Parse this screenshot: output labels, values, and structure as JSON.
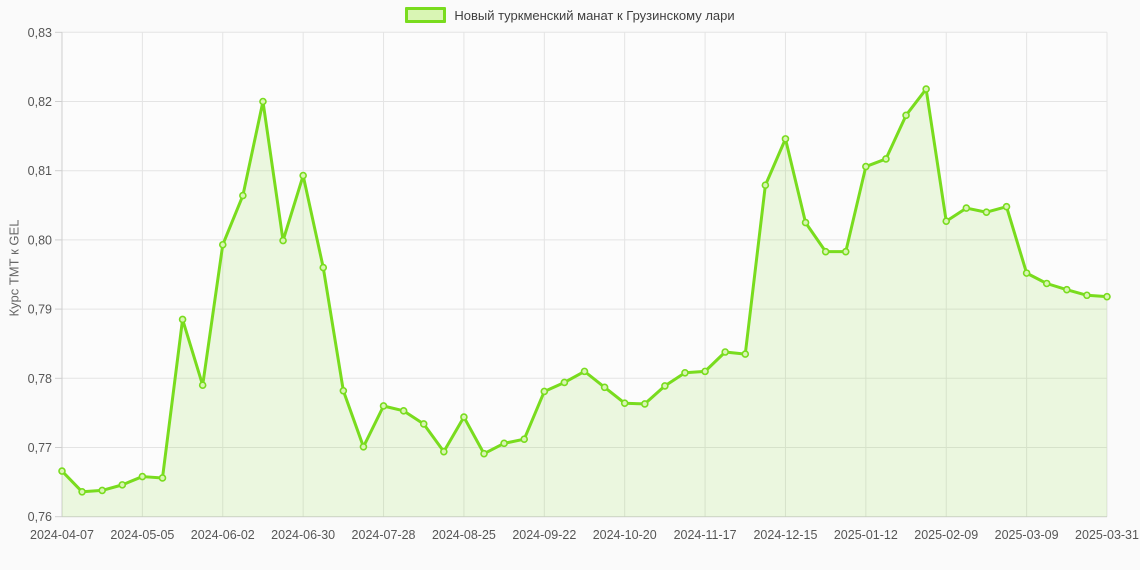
{
  "legend": {
    "label": "Новый туркменский манат к Грузинскому лари"
  },
  "colors": {
    "line": "#79dc1e",
    "area_fill": "rgba(121,220,30,0.13)",
    "marker_fill": "#d9f5b4",
    "plot_bg": "#fcfcfc",
    "page_bg": "#fafafa",
    "grid": "#e4e4e4",
    "axis": "#cfcfcf",
    "tick_text": "#565656"
  },
  "chart_data": {
    "type": "area",
    "title": "",
    "xlabel": "",
    "ylabel": "Курс ТМТ к GEL",
    "ylim": [
      0.76,
      0.83
    ],
    "grid": true,
    "legend_position": "top-center",
    "series": [
      {
        "name": "Новый туркменский манат к Грузинскому лари",
        "values": [
          0.7666,
          0.7636,
          0.7638,
          0.7646,
          0.7658,
          0.7656,
          0.7885,
          0.779,
          0.7993,
          0.8064,
          0.82,
          0.7999,
          0.8093,
          0.796,
          0.7782,
          0.7701,
          0.776,
          0.7753,
          0.7734,
          0.7694,
          0.7744,
          0.7691,
          0.7706,
          0.7712,
          0.7781,
          0.7794,
          0.781,
          0.7787,
          0.7764,
          0.7763,
          0.7789,
          0.7808,
          0.781,
          0.7838,
          0.7835,
          0.8079,
          0.8146,
          0.8025,
          0.7983,
          0.7983,
          0.8106,
          0.8117,
          0.818,
          0.8218,
          0.8027,
          0.8046,
          0.804,
          0.8048,
          0.7952,
          0.7937,
          0.7928,
          0.792,
          0.7918
        ]
      }
    ],
    "x": [
      "2024-04-07",
      "2024-04-14",
      "2024-04-21",
      "2024-04-28",
      "2024-05-05",
      "2024-05-12",
      "2024-05-19",
      "2024-05-26",
      "2024-06-02",
      "2024-06-09",
      "2024-06-16",
      "2024-06-23",
      "2024-06-30",
      "2024-07-07",
      "2024-07-14",
      "2024-07-21",
      "2024-07-28",
      "2024-08-04",
      "2024-08-11",
      "2024-08-18",
      "2024-08-25",
      "2024-09-01",
      "2024-09-08",
      "2024-09-15",
      "2024-09-22",
      "2024-09-29",
      "2024-10-06",
      "2024-10-13",
      "2024-10-20",
      "2024-10-27",
      "2024-11-03",
      "2024-11-10",
      "2024-11-17",
      "2024-11-24",
      "2024-12-01",
      "2024-12-08",
      "2024-12-15",
      "2024-12-22",
      "2024-12-29",
      "2025-01-05",
      "2025-01-12",
      "2025-01-19",
      "2025-01-26",
      "2025-02-02",
      "2025-02-09",
      "2025-02-16",
      "2025-02-23",
      "2025-03-02",
      "2025-03-09",
      "2025-03-16",
      "2025-03-23",
      "2025-03-30",
      "2025-03-31"
    ],
    "yticks": [
      0.76,
      0.77,
      0.78,
      0.79,
      0.8,
      0.81,
      0.82,
      0.83
    ],
    "ytick_labels": [
      "0,76",
      "0,77",
      "0,78",
      "0,79",
      "0,80",
      "0,81",
      "0,82",
      "0,83"
    ],
    "xtick_indices": [
      0,
      4,
      8,
      12,
      16,
      20,
      24,
      28,
      32,
      36,
      40,
      44,
      48,
      52
    ],
    "xtick_labels": [
      "2024-04-07",
      "2024-05-05",
      "2024-06-02",
      "2024-06-30",
      "2024-07-28",
      "2024-08-25",
      "2024-09-22",
      "2024-10-20",
      "2024-11-17",
      "2024-12-15",
      "2025-01-12",
      "2025-02-09",
      "2025-03-09",
      "2025-03-31"
    ]
  }
}
